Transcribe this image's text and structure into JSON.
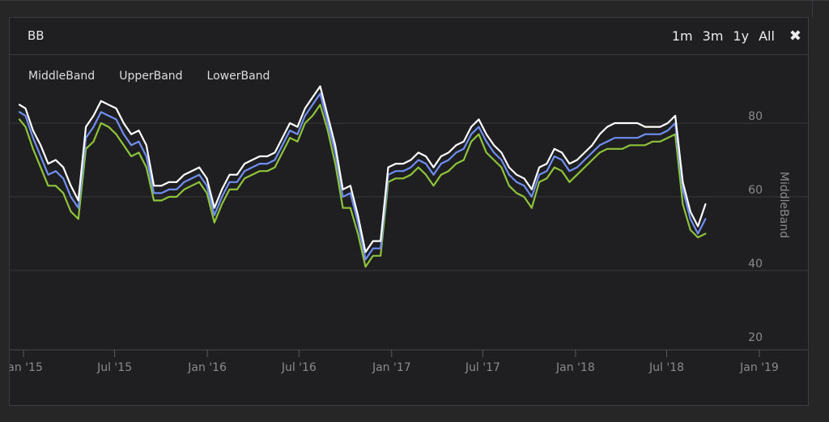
{
  "panel": {
    "title": "BB",
    "ranges": [
      "1m",
      "3m",
      "1y",
      "All"
    ],
    "close_icon": "close-icon"
  },
  "legend": [
    "MiddleBand",
    "UpperBand",
    "LowerBand"
  ],
  "colors": {
    "MiddleBand": "#6f8ff0",
    "UpperBand": "#ffffff",
    "LowerBand": "#8ec33a",
    "grid": "#3a3a3e",
    "axis_text": "#8a8a8a"
  },
  "chart_data": {
    "type": "line",
    "title": "",
    "xlabel": "",
    "ylabel": "MiddleBand",
    "x_ticks": [
      "Jan '15",
      "Jul '15",
      "Jan '16",
      "Jul '16",
      "Jan '17",
      "Jul '17",
      "Jan '18",
      "Jul '18",
      "Jan '19"
    ],
    "y_ticks": [
      20,
      40,
      60,
      80
    ],
    "ylim": [
      20,
      90
    ],
    "xlim": [
      "2015-01-01",
      "2019-01-01"
    ],
    "grid": true,
    "legend_position": "top-left",
    "dates": [
      "2014-12-24",
      "2015-01-05",
      "2015-01-20",
      "2015-02-04",
      "2015-02-19",
      "2015-03-06",
      "2015-03-21",
      "2015-04-05",
      "2015-04-20",
      "2015-05-05",
      "2015-05-20",
      "2015-06-04",
      "2015-06-19",
      "2015-07-04",
      "2015-07-19",
      "2015-08-03",
      "2015-08-18",
      "2015-09-02",
      "2015-09-17",
      "2015-10-02",
      "2015-10-17",
      "2015-11-01",
      "2015-11-16",
      "2015-12-01",
      "2015-12-16",
      "2015-12-31",
      "2016-01-15",
      "2016-01-30",
      "2016-02-14",
      "2016-02-29",
      "2016-03-15",
      "2016-03-30",
      "2016-04-14",
      "2016-04-29",
      "2016-05-14",
      "2016-05-29",
      "2016-06-13",
      "2016-06-28",
      "2016-07-13",
      "2016-07-28",
      "2016-08-12",
      "2016-08-27",
      "2016-09-11",
      "2016-09-26",
      "2016-10-11",
      "2016-10-26",
      "2016-11-10",
      "2016-11-25",
      "2016-12-10",
      "2016-12-25",
      "2017-01-09",
      "2017-01-24",
      "2017-02-08",
      "2017-02-23",
      "2017-03-10",
      "2017-03-25",
      "2017-04-09",
      "2017-04-24",
      "2017-05-09",
      "2017-05-24",
      "2017-06-08",
      "2017-06-23",
      "2017-07-08",
      "2017-07-23",
      "2017-08-07",
      "2017-08-22",
      "2017-09-06",
      "2017-09-21",
      "2017-10-06",
      "2017-10-21",
      "2017-11-05",
      "2017-11-20",
      "2017-12-05",
      "2017-12-20",
      "2018-01-04",
      "2018-01-19",
      "2018-02-03",
      "2018-02-18",
      "2018-03-05",
      "2018-03-20",
      "2018-04-04",
      "2018-04-19",
      "2018-05-04",
      "2018-05-19",
      "2018-06-03",
      "2018-06-18",
      "2018-07-03",
      "2018-07-18",
      "2018-08-02",
      "2018-08-17",
      "2018-09-01",
      "2018-09-16"
    ],
    "series": [
      {
        "name": "UpperBand",
        "values": [
          85,
          84,
          78,
          74,
          69,
          70,
          68,
          63,
          59,
          79,
          82,
          86,
          85,
          84,
          80,
          77,
          78,
          74,
          63,
          63,
          64,
          64,
          66,
          67,
          68,
          65,
          57,
          62,
          66,
          66,
          69,
          70,
          71,
          71,
          72,
          76,
          80,
          79,
          84,
          87,
          90,
          82,
          74,
          62,
          63,
          55,
          45,
          48,
          48,
          68,
          69,
          69,
          70,
          72,
          71,
          68,
          71,
          72,
          74,
          75,
          79,
          81,
          77,
          74,
          72,
          68,
          66,
          65,
          62,
          68,
          69,
          73,
          72,
          69,
          70,
          72,
          74,
          77,
          79,
          80,
          80,
          80,
          80,
          79,
          79,
          79,
          80,
          82,
          64,
          56,
          52,
          58
        ]
      },
      {
        "name": "MiddleBand",
        "values": [
          83,
          82,
          76,
          71,
          66,
          67,
          65,
          60,
          57,
          76,
          79,
          83,
          82,
          81,
          77,
          74,
          75,
          71,
          61,
          61,
          62,
          62,
          64,
          65,
          66,
          63,
          55,
          60,
          64,
          64,
          67,
          68,
          69,
          69,
          70,
          74,
          78,
          77,
          82,
          85,
          88,
          80,
          72,
          60,
          61,
          53,
          43,
          46,
          46,
          66,
          67,
          67,
          68,
          70,
          69,
          66,
          69,
          70,
          72,
          73,
          77,
          79,
          75,
          72,
          70,
          66,
          64,
          63,
          60,
          66,
          67,
          71,
          70,
          67,
          68,
          70,
          72,
          74,
          75,
          76,
          76,
          76,
          76,
          77,
          77,
          77,
          78,
          80,
          62,
          54,
          50,
          54
        ]
      },
      {
        "name": "LowerBand",
        "values": [
          81,
          79,
          73,
          68,
          63,
          63,
          61,
          56,
          54,
          73,
          75,
          80,
          79,
          77,
          74,
          71,
          72,
          68,
          59,
          59,
          60,
          60,
          62,
          63,
          64,
          61,
          53,
          58,
          62,
          62,
          65,
          66,
          67,
          67,
          68,
          72,
          76,
          75,
          80,
          82,
          85,
          78,
          69,
          57,
          57,
          50,
          41,
          44,
          44,
          64,
          65,
          65,
          66,
          68,
          66,
          63,
          66,
          67,
          69,
          70,
          75,
          77,
          72,
          70,
          68,
          63,
          61,
          60,
          57,
          64,
          65,
          68,
          67,
          64,
          66,
          68,
          70,
          72,
          73,
          73,
          73,
          74,
          74,
          74,
          75,
          75,
          76,
          77,
          58,
          51,
          49,
          50
        ]
      }
    ]
  }
}
